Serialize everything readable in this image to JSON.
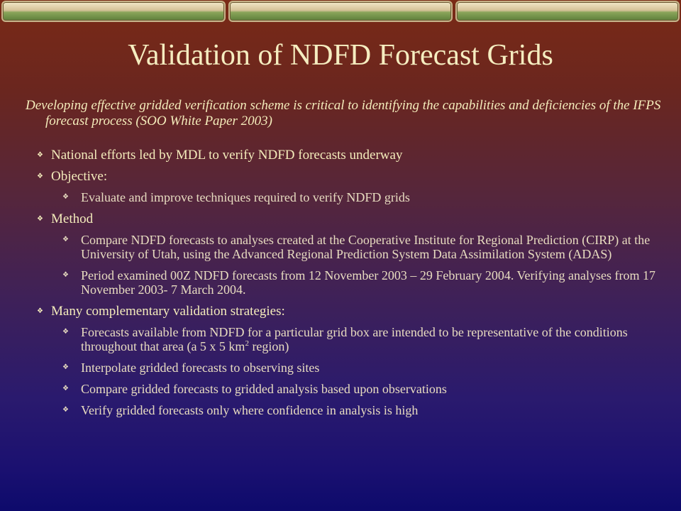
{
  "slide": {
    "title": "Validation of NDFD Forecast Grids",
    "intro": "Developing effective gridded verification scheme is critical to identifying the capabilities and deficiencies of the IFPS forecast process (SOO White Paper 2003)",
    "bullets": {
      "national_efforts": "National efforts led by MDL to verify NDFD forecasts underway",
      "objective": "Objective:",
      "objective_sub": "Evaluate and improve techniques required to verify NDFD grids",
      "method": "Method",
      "method_sub_1": "Compare NDFD forecasts to analyses created at the Cooperative Institute for Regional Prediction (CIRP) at the University of Utah, using the Advanced Regional Prediction System Data Assimilation System (ADAS)",
      "method_sub_2": "Period examined 00Z NDFD forecasts from 12 November 2003 – 29 February 2004. Verifying analyses from 17 November 2003- 7 March 2004.",
      "strategies": "Many complementary validation strategies:",
      "strategies_sub_1_a": "Forecasts available from NDFD for a particular grid box are intended to be representative of the conditions throughout that area (a 5 x 5 km",
      "strategies_sub_1_sup": "2",
      "strategies_sub_1_b": " region)",
      "strategies_sub_2": "Interpolate gridded forecasts to observing sites",
      "strategies_sub_3": "Compare  gridded forecasts to gridded analysis based upon  observations",
      "strategies_sub_4": "Verify gridded forecasts only where confidence in analysis is high"
    },
    "bullet_glyph": "❖",
    "colors": {
      "title": "#f5edc0",
      "text": "#f4ecbb",
      "subtext": "#e8dcc0"
    }
  }
}
